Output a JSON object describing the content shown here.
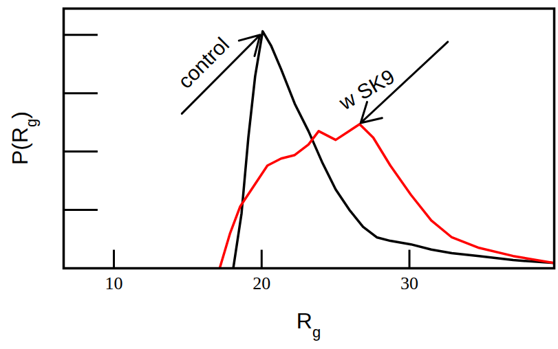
{
  "chart_data": {
    "type": "line",
    "x_label": "Rg",
    "y_label": "P(Rg)",
    "xlim": [
      6.6,
      39.8
    ],
    "xticks": [
      10,
      20,
      30
    ],
    "ylim": [
      0,
      4.45
    ],
    "yticks": [
      1,
      2,
      3,
      4
    ],
    "tick_labels": "x",
    "grid": false,
    "series": [
      {
        "name": "control",
        "color": "#000000",
        "x": [
          18.08,
          18.64,
          19.1,
          19.56,
          20.07,
          20.63,
          21.32,
          22.24,
          23.17,
          24.09,
          25.01,
          25.94,
          26.86,
          27.79,
          28.71,
          30.1,
          31.48,
          32.87,
          34.71,
          37.02,
          39.8
        ],
        "values": [
          0,
          0.94,
          2.24,
          3.29,
          4.06,
          3.82,
          3.41,
          2.82,
          2.35,
          1.82,
          1.35,
          1.0,
          0.71,
          0.53,
          0.47,
          0.41,
          0.32,
          0.26,
          0.21,
          0.14,
          0.09
        ]
      },
      {
        "name": "w SK9",
        "color": "#ff0000",
        "x": [
          17.16,
          17.85,
          18.55,
          19.47,
          20.39,
          21.32,
          22.24,
          23.17,
          23.86,
          25.01,
          26.63,
          27.55,
          28.71,
          30.1,
          31.48,
          32.87,
          34.71,
          37.02,
          39.8
        ],
        "values": [
          0,
          0.59,
          1.06,
          1.41,
          1.76,
          1.88,
          1.94,
          2.12,
          2.35,
          2.2,
          2.47,
          2.24,
          1.76,
          1.26,
          0.82,
          0.53,
          0.35,
          0.21,
          0.09
        ]
      }
    ],
    "annotations": [
      {
        "text": "control",
        "x": 14.6,
        "y": 2.65,
        "arrow_to": [
          19.9,
          4.0
        ]
      },
      {
        "text": "w SK9",
        "x": 32.6,
        "y": 3.88,
        "arrow_to": [
          26.7,
          2.49
        ]
      }
    ]
  }
}
